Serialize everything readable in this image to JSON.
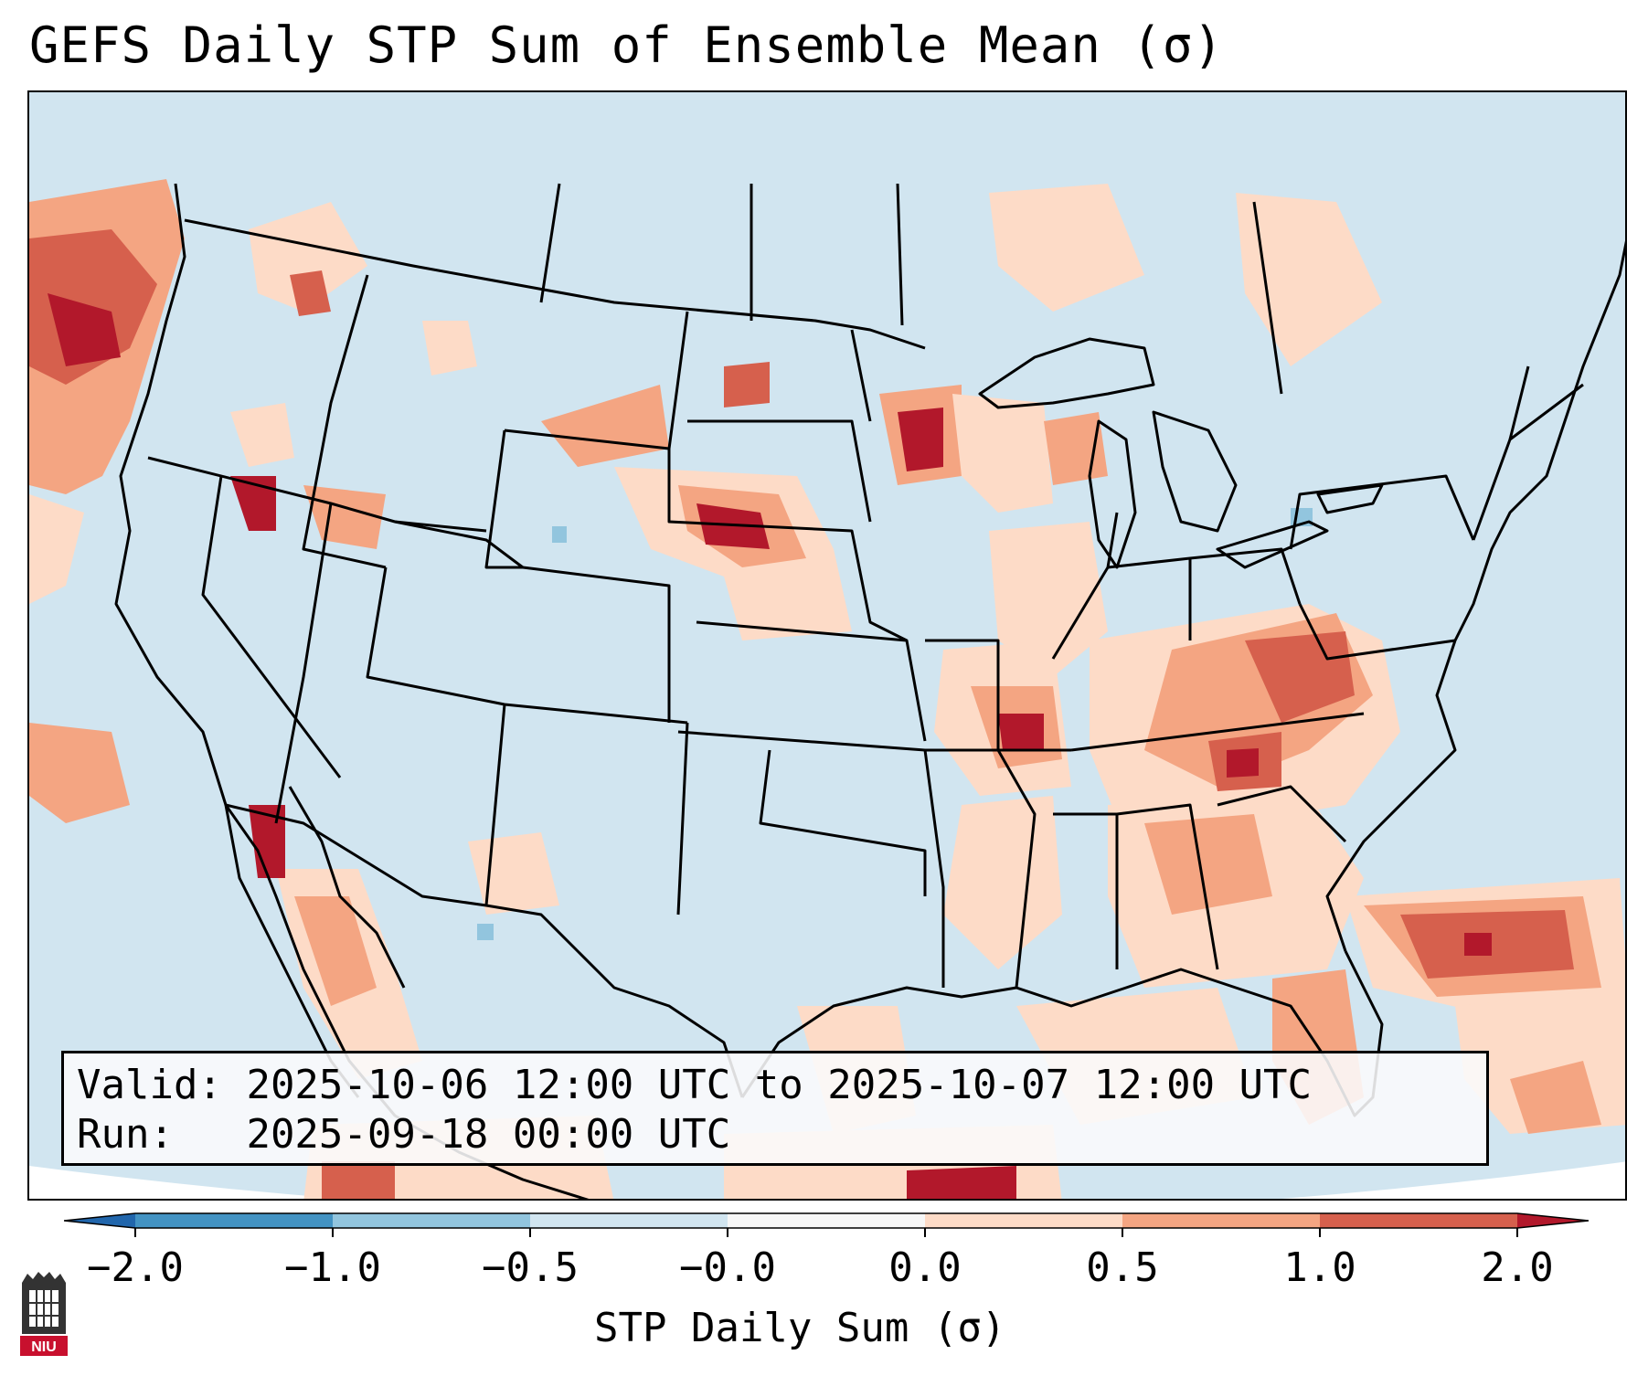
{
  "title": "GEFS Daily STP Sum of Ensemble Mean (σ)",
  "info": {
    "valid_label": "Valid:",
    "valid_value": "2025-10-06 12:00 UTC to 2025-10-07 12:00 UTC",
    "run_label": "Run:",
    "run_value": "2025-09-18 00:00 UTC"
  },
  "colorbar": {
    "label": "STP Daily Sum (σ)",
    "ticks": [
      "−2.0",
      "−1.0",
      "−0.5",
      "−0.0",
      "0.0",
      "0.5",
      "1.0",
      "2.0"
    ],
    "colors": [
      "#2166ac",
      "#4393c3",
      "#92c5de",
      "#d1e5f0",
      "#f7f7f7",
      "#fddbc7",
      "#f4a582",
      "#d6604d",
      "#b2182b"
    ]
  },
  "logo": {
    "text": "NIU",
    "color": "#c8102e"
  },
  "map": {
    "background_color": "#d1e5f0",
    "anomaly_colors": {
      "weak": "#fddbc7",
      "moderate": "#f4a582",
      "strong": "#d6604d",
      "extreme": "#b2182b",
      "negative": "#92c5de"
    }
  }
}
